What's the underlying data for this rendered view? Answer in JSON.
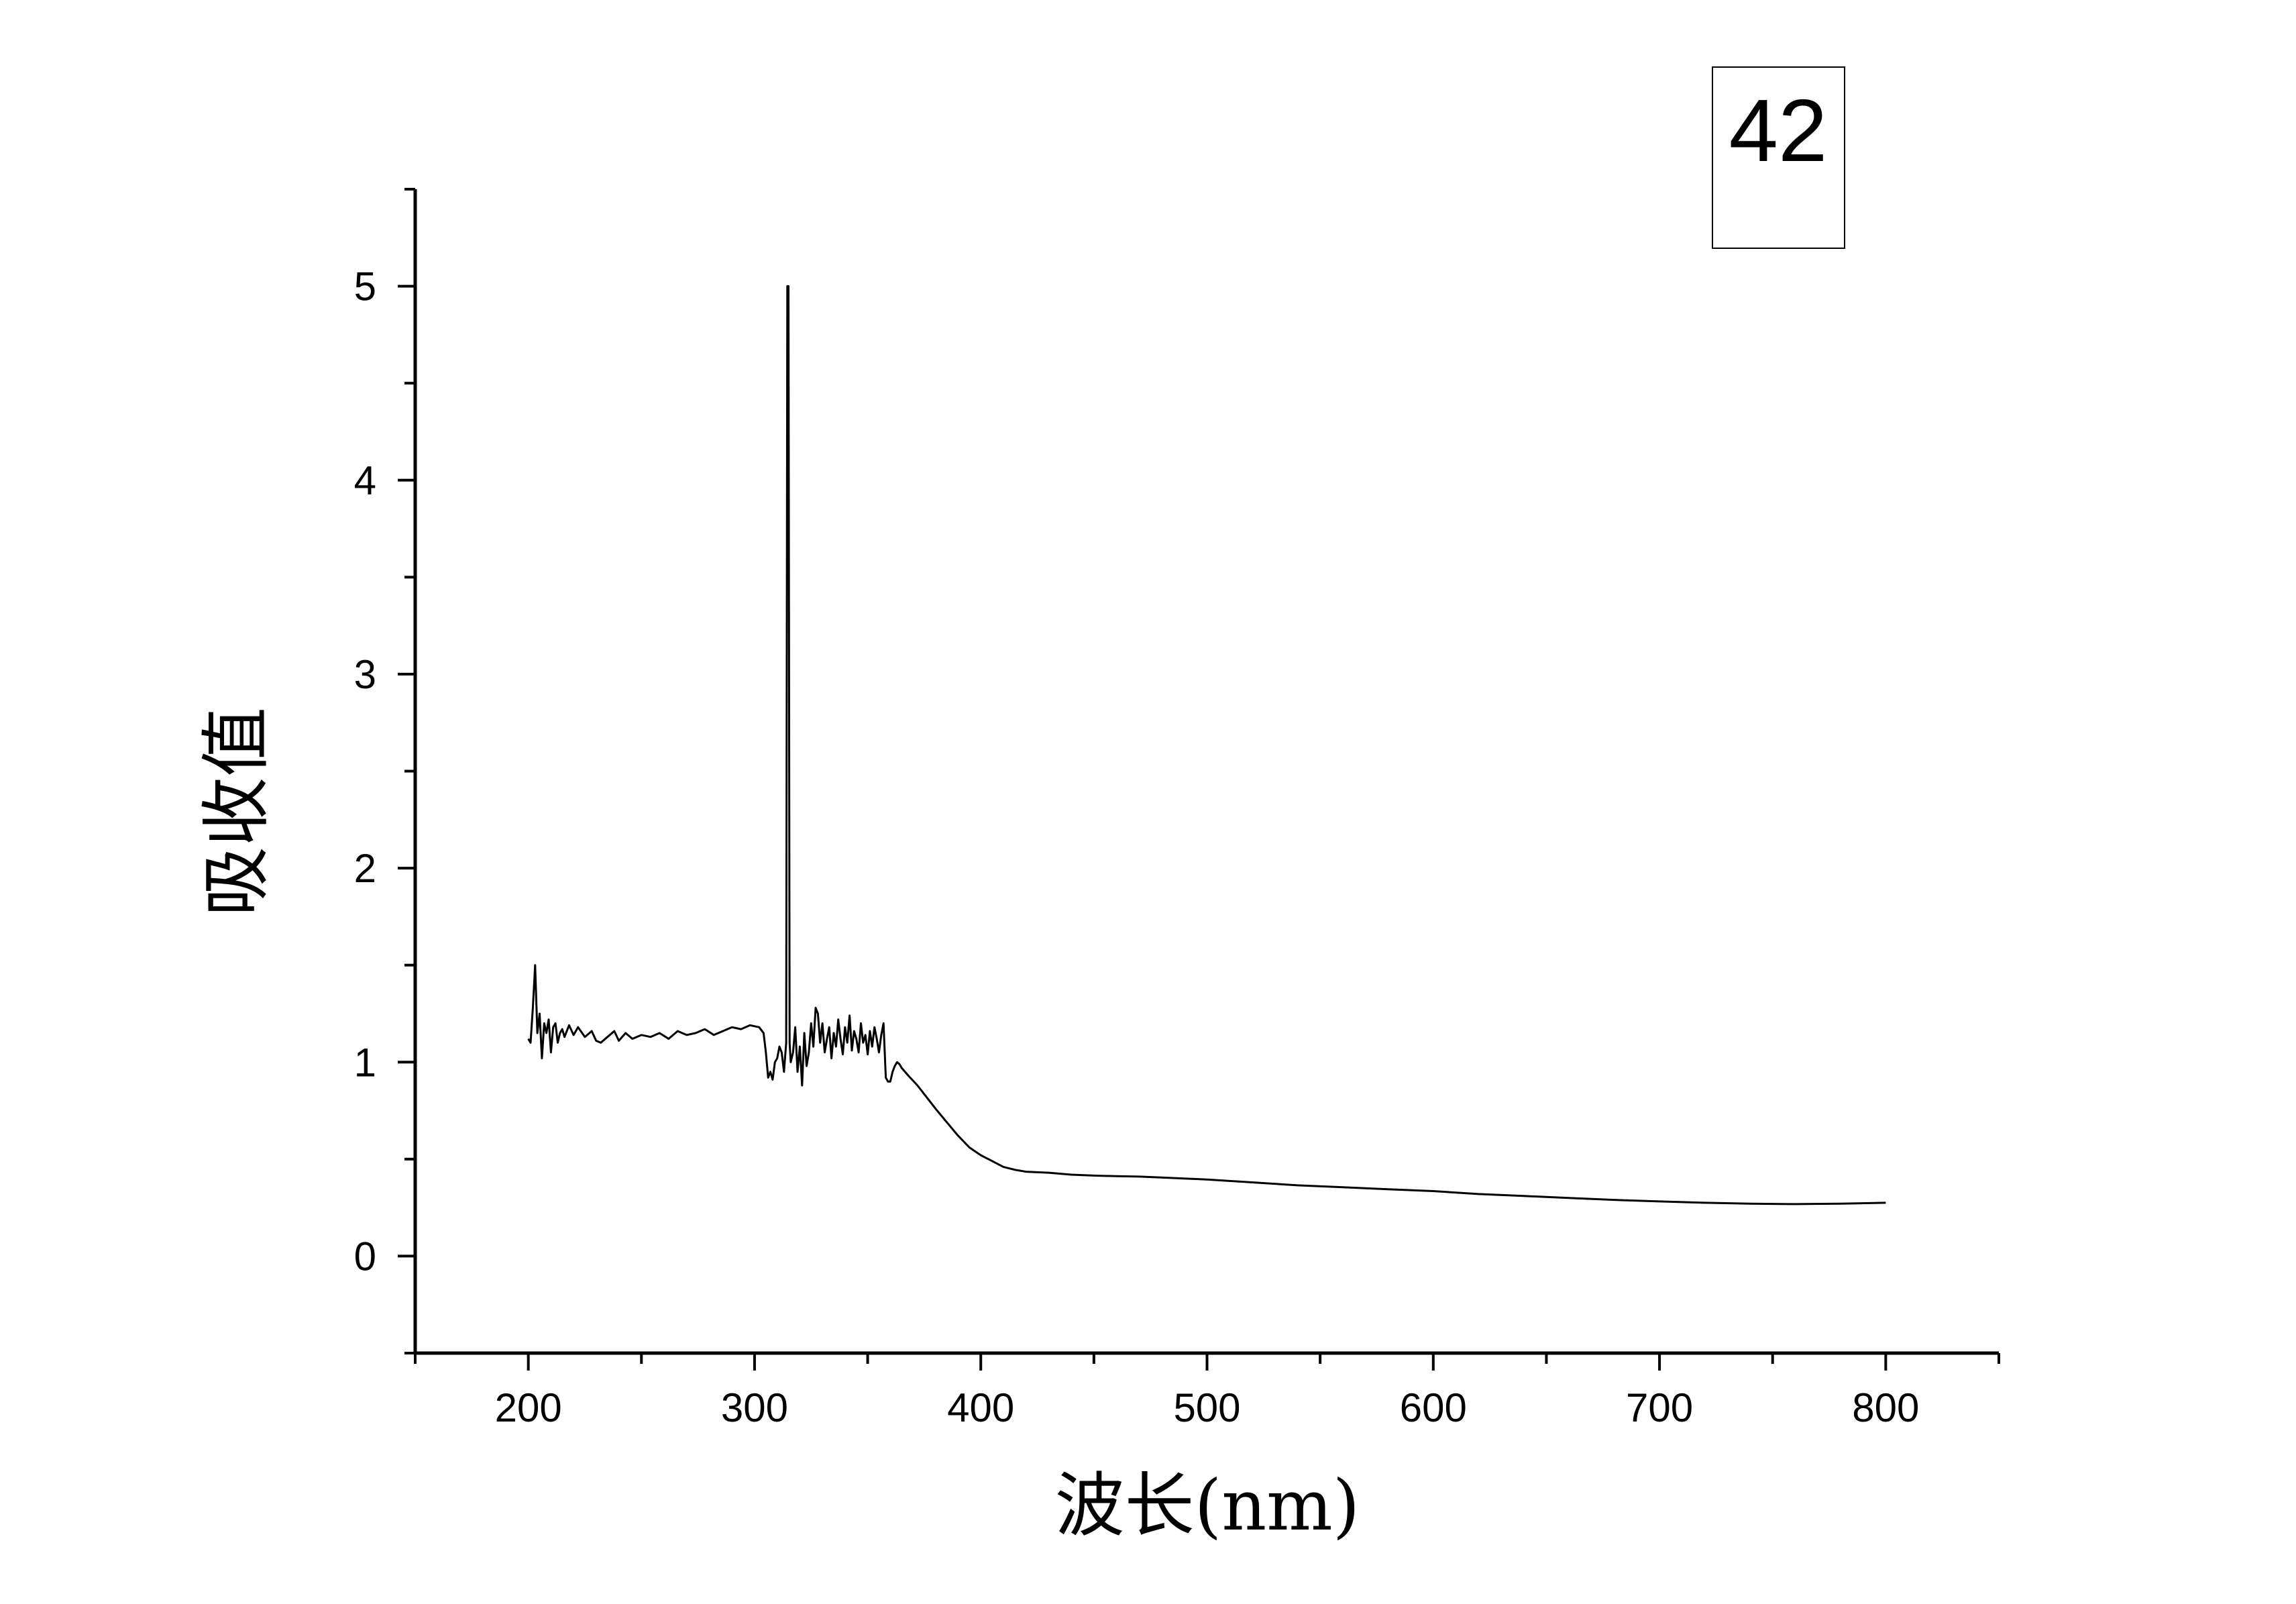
{
  "chart_data": {
    "type": "line",
    "title": "",
    "label_box": "42",
    "xlabel": "波长(nm)",
    "ylabel": "吸收值",
    "xlim": [
      150,
      850
    ],
    "ylim": [
      -0.5,
      5.5
    ],
    "xticks": [
      200,
      300,
      400,
      500,
      600,
      700,
      800
    ],
    "yticks": [
      0,
      1,
      2,
      3,
      4,
      5
    ],
    "grid": false,
    "series": [
      {
        "x": [
          200,
          201,
          202,
          203,
          204,
          205,
          206,
          207,
          208,
          209,
          210,
          211,
          212,
          213,
          214,
          215,
          216,
          218,
          220,
          222,
          225,
          228,
          230,
          232,
          235,
          238,
          240,
          243,
          246,
          250,
          254,
          258,
          262,
          266,
          270,
          274,
          278,
          282,
          286,
          290,
          294,
          298,
          302,
          304,
          305,
          306,
          307,
          308,
          309,
          310,
          311,
          312,
          313,
          314,
          314.5,
          315,
          315.5,
          316,
          317,
          318,
          319,
          320,
          321,
          322,
          323,
          324,
          325,
          326,
          327,
          328,
          329,
          330,
          331,
          332,
          333,
          334,
          335,
          336,
          337,
          338,
          339,
          340,
          341,
          342,
          343,
          344,
          345,
          346,
          347,
          348,
          349,
          350,
          351,
          352,
          353,
          354,
          355,
          356,
          357,
          358,
          359,
          360,
          361,
          362,
          363,
          364,
          365,
          368,
          372,
          376,
          380,
          385,
          390,
          395,
          400,
          405,
          410,
          415,
          420,
          430,
          440,
          450,
          460,
          470,
          480,
          500,
          520,
          540,
          560,
          580,
          600,
          620,
          640,
          660,
          680,
          700,
          720,
          740,
          760,
          780,
          800
        ],
        "y": [
          1.12,
          1.1,
          1.28,
          1.5,
          1.15,
          1.25,
          1.02,
          1.2,
          1.15,
          1.22,
          1.05,
          1.18,
          1.2,
          1.1,
          1.15,
          1.17,
          1.13,
          1.19,
          1.14,
          1.18,
          1.13,
          1.16,
          1.11,
          1.1,
          1.13,
          1.16,
          1.11,
          1.15,
          1.12,
          1.14,
          1.13,
          1.15,
          1.12,
          1.16,
          1.14,
          1.15,
          1.17,
          1.14,
          1.16,
          1.18,
          1.17,
          1.19,
          1.18,
          1.15,
          1.05,
          0.92,
          0.95,
          0.91,
          1.0,
          1.02,
          1.08,
          1.05,
          0.95,
          1.1,
          5.0,
          5.0,
          1.1,
          1.0,
          1.05,
          1.18,
          0.95,
          1.08,
          0.88,
          1.15,
          0.98,
          1.05,
          1.2,
          1.08,
          1.28,
          1.25,
          1.1,
          1.2,
          1.05,
          1.12,
          1.18,
          1.02,
          1.15,
          1.08,
          1.22,
          1.12,
          1.04,
          1.18,
          1.1,
          1.24,
          1.06,
          1.16,
          1.12,
          1.05,
          1.2,
          1.1,
          1.14,
          1.04,
          1.16,
          1.08,
          1.18,
          1.12,
          1.05,
          1.14,
          1.2,
          0.92,
          0.9,
          0.9,
          0.95,
          0.98,
          1.0,
          0.99,
          0.97,
          0.93,
          0.88,
          0.82,
          0.76,
          0.69,
          0.62,
          0.56,
          0.52,
          0.49,
          0.46,
          0.445,
          0.435,
          0.43,
          0.42,
          0.415,
          0.412,
          0.41,
          0.405,
          0.395,
          0.38,
          0.365,
          0.355,
          0.345,
          0.335,
          0.32,
          0.31,
          0.3,
          0.29,
          0.282,
          0.275,
          0.27,
          0.268,
          0.27,
          0.275
        ]
      }
    ]
  }
}
